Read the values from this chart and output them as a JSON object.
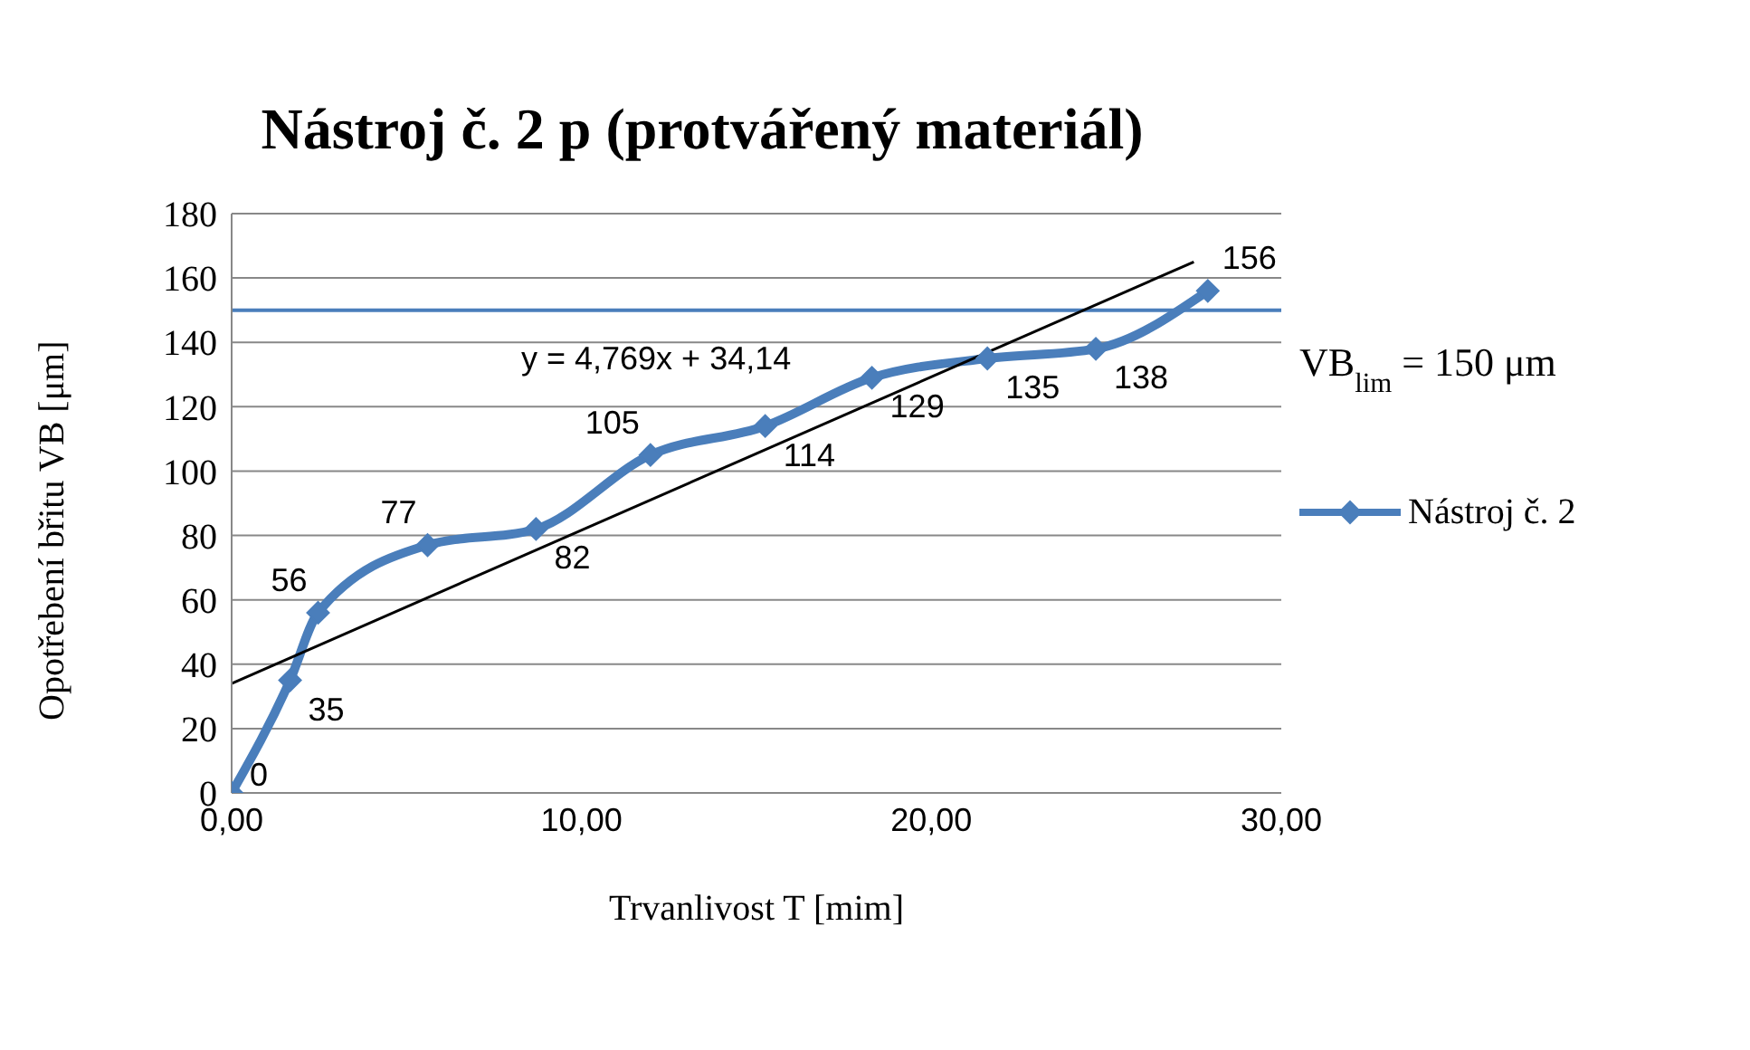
{
  "chart_data": {
    "type": "line",
    "title": "Nástroj č. 2 p (protvářený materiál)",
    "xlabel": "Trvanlivost T [mim]",
    "ylabel": "Opotřebení břitu VB [μm]",
    "series": [
      {
        "name": "Nástroj č. 2",
        "color": "#4a7ebb",
        "x": [
          0,
          1.67,
          2.47,
          5.6,
          8.7,
          11.97,
          15.25,
          18.3,
          21.6,
          24.7,
          27.9
        ],
        "values": [
          0,
          35,
          56,
          77,
          82,
          105,
          114,
          129,
          135,
          138,
          156
        ],
        "marker": "diamond",
        "data_labels": true
      },
      {
        "type": "line",
        "color": "#000000",
        "x": [
          0,
          27.5
        ],
        "values": [
          34,
          165
        ],
        "marker": "none"
      }
    ],
    "xlim": [
      0,
      30
    ],
    "xticks": [
      {
        "value": 0,
        "label": "0,00"
      },
      {
        "value": 10,
        "label": "10,00"
      },
      {
        "value": 20,
        "label": "20,00"
      },
      {
        "value": 30,
        "label": "30,00"
      }
    ],
    "ylim": [
      0,
      180
    ],
    "yticks": [
      0,
      20,
      40,
      60,
      80,
      100,
      120,
      140,
      160,
      180
    ],
    "grid": "y",
    "legend": "right",
    "line_style": "solid",
    "ref_lines": [
      {
        "axis": "y",
        "value": 150,
        "label": "VB$_{lim}$ = 150 μm",
        "color": "#4a7ebb"
      }
    ],
    "annotations": [
      "y = 4,769x + 34,14"
    ]
  }
}
